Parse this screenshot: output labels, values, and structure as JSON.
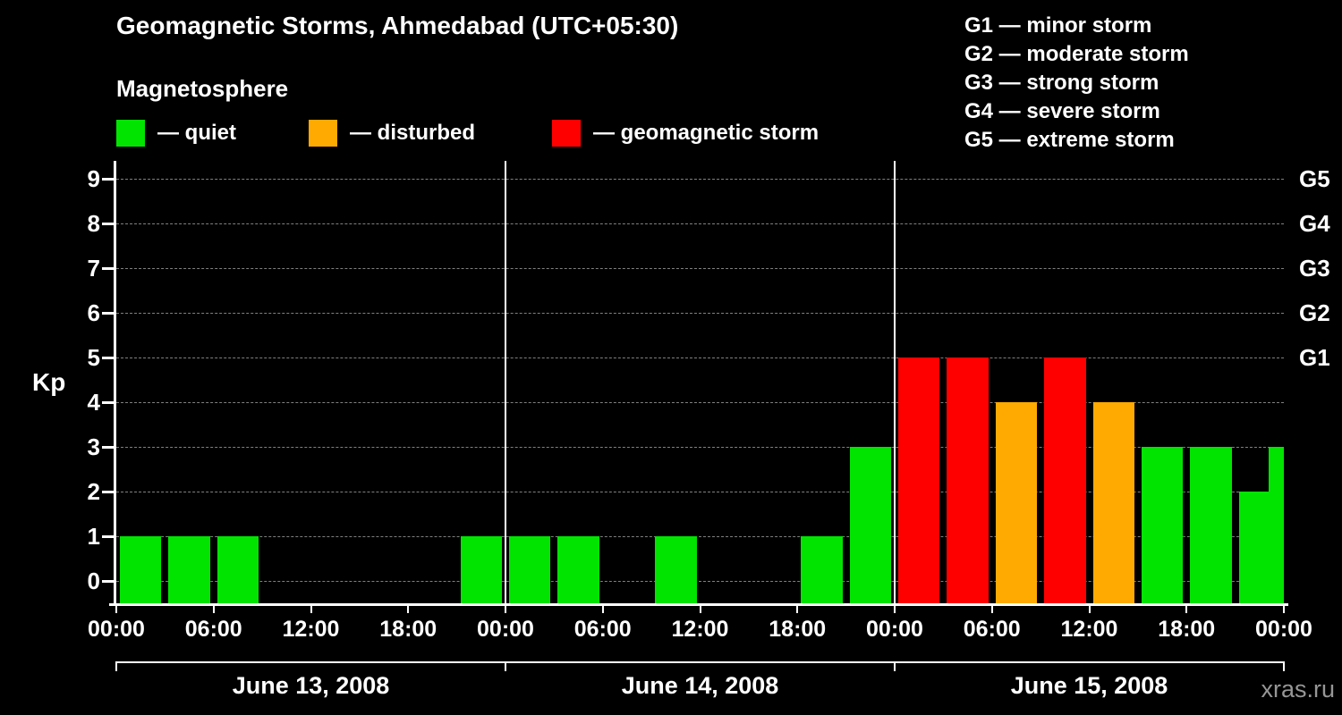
{
  "header": {
    "title": "Geomagnetic Storms, Ahmedabad (UTC+05:30)",
    "subtitle": "Magnetosphere"
  },
  "kp_legend": [
    {
      "key": "quiet",
      "label": "— quiet",
      "color": "#00e400"
    },
    {
      "key": "disturbed",
      "label": "— disturbed",
      "color": "#ffaa00"
    },
    {
      "key": "storm",
      "label": "— geomagnetic storm",
      "color": "#ff0000"
    }
  ],
  "storm_scale_legend": [
    {
      "label": "G1 — minor storm"
    },
    {
      "label": "G2 — moderate storm"
    },
    {
      "label": "G3 — strong storm"
    },
    {
      "label": "G4 — severe storm"
    },
    {
      "label": "G5 — extreme storm"
    }
  ],
  "watermark": "xras.ru",
  "chart_data": {
    "type": "bar",
    "title": "Geomagnetic Storms, Ahmedabad (UTC+05:30)",
    "ylabel": "Kp",
    "ylim": [
      0,
      9
    ],
    "yticks": [
      0,
      1,
      2,
      3,
      4,
      5,
      6,
      7,
      8,
      9
    ],
    "grid": "horizontal-dashed",
    "hours_per_bar": 3,
    "x_tick_labels": [
      "00:00",
      "06:00",
      "12:00",
      "18:00",
      "00:00",
      "06:00",
      "12:00",
      "18:00",
      "00:00",
      "06:00",
      "12:00",
      "18:00",
      "00:00"
    ],
    "right_axis_labels": [
      {
        "kp": 5,
        "label": "G1"
      },
      {
        "kp": 6,
        "label": "G2"
      },
      {
        "kp": 7,
        "label": "G3"
      },
      {
        "kp": 8,
        "label": "G4"
      },
      {
        "kp": 9,
        "label": "G5"
      }
    ],
    "days": [
      {
        "date": "June 13, 2008",
        "values": [
          1,
          1,
          1,
          0,
          0,
          0,
          0,
          1
        ]
      },
      {
        "date": "June 14, 2008",
        "values": [
          1,
          1,
          0,
          1,
          0,
          0,
          1,
          3
        ]
      },
      {
        "date": "June 15, 2008",
        "values": [
          5,
          5,
          4,
          5,
          4,
          3,
          3,
          2
        ]
      }
    ],
    "next_day_partial_value": 3,
    "colors": {
      "quiet": "#00e400",
      "disturbed": "#ffaa00",
      "storm": "#ff0000"
    },
    "thresholds": {
      "disturbed_min": 4,
      "storm_min": 5
    }
  }
}
